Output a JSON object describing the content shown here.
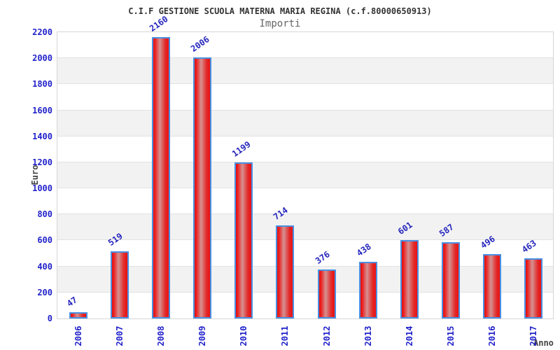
{
  "chart_data": {
    "type": "bar",
    "title": "C.I.F GESTIONE SCUOLA MATERNA MARIA REGINA (c.f.80000650913)",
    "subtitle": "Importi",
    "xlabel": "Anno",
    "ylabel": "Euro",
    "categories": [
      "2006",
      "2007",
      "2008",
      "2009",
      "2010",
      "2011",
      "2012",
      "2013",
      "2014",
      "2015",
      "2016",
      "2017"
    ],
    "values": [
      47,
      519,
      2160,
      2006,
      1199,
      714,
      376,
      438,
      601,
      587,
      496,
      463
    ],
    "ylim": [
      0,
      2200
    ],
    "ytick_step": 200,
    "yticks": [
      0,
      200,
      400,
      600,
      800,
      1000,
      1200,
      1400,
      1600,
      1800,
      2000,
      2200
    ],
    "grid": "horizontal gridlines with alternating shaded bands",
    "legend": "none",
    "colors": {
      "bar_fill": "#ea1010",
      "bar_fill_highlight": "#d69191",
      "bar_border": "#4a8fe2",
      "tick_label": "#2222cc",
      "value_label": "#2626be",
      "title_text": "#333333",
      "subtitle_text": "#666666",
      "axis_label_text": "#444444",
      "band": "#f2f2f2",
      "gridline": "#e2e2e2"
    }
  }
}
